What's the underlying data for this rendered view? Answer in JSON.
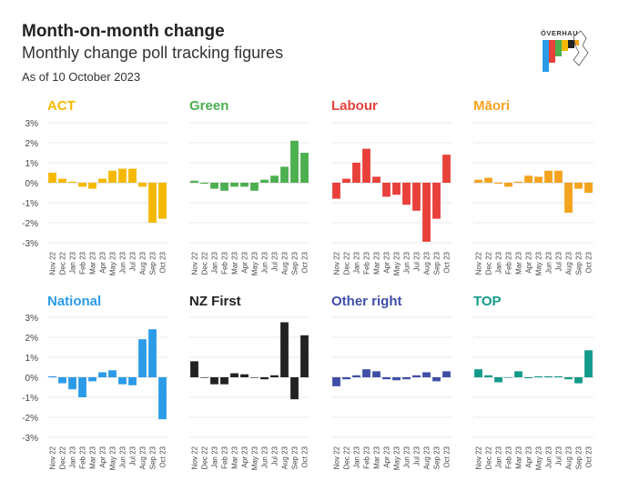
{
  "header": {
    "title": "Month-on-month change",
    "subtitle": "Monthly change poll tracking figures",
    "as_of": "As of 10 October 2023",
    "logo_text": "ÖVERHAU"
  },
  "chart_data": [
    {
      "type": "bar",
      "title": "ACT",
      "color": "#F5B800",
      "categories": [
        "Nov 22",
        "Dec 22",
        "Jan 23",
        "Feb 23",
        "Mar 23",
        "Apr 23",
        "May 23",
        "Jun 23",
        "Jul 23",
        "Aug 23",
        "Sep 23",
        "Oct 23"
      ],
      "values": [
        0.5,
        0.2,
        0.05,
        -0.2,
        -0.3,
        0.2,
        0.6,
        0.7,
        0.7,
        -0.2,
        -2.0,
        -1.8
      ],
      "yticks": [
        "3%",
        "2%",
        "1%",
        "0%",
        "-1%",
        "-2%",
        "-3%"
      ],
      "ylim": [
        -3,
        3
      ]
    },
    {
      "type": "bar",
      "title": "Green",
      "color": "#4CAF50",
      "categories": [
        "Nov 22",
        "Dec 22",
        "Jan 23",
        "Feb 23",
        "Mar 23",
        "Apr 23",
        "May 23",
        "Jun 23",
        "Jul 23",
        "Aug 23",
        "Sep 23",
        "Oct 23"
      ],
      "values": [
        0.1,
        -0.05,
        -0.3,
        -0.4,
        -0.2,
        -0.2,
        -0.4,
        0.15,
        0.35,
        0.8,
        2.1,
        1.5
      ],
      "yticks": [
        "3%",
        "2%",
        "1%",
        "0%",
        "-1%",
        "-2%",
        "-3%"
      ],
      "ylim": [
        -3,
        3
      ]
    },
    {
      "type": "bar",
      "title": "Labour",
      "color": "#E8403A",
      "categories": [
        "Nov 22",
        "Dec 22",
        "Jan 23",
        "Feb 23",
        "Mar 23",
        "Apr 23",
        "May 23",
        "Jun 23",
        "Jul 23",
        "Aug 23",
        "Sep 23",
        "Oct 23"
      ],
      "values": [
        -0.8,
        0.2,
        1.0,
        1.7,
        0.3,
        -0.7,
        -0.6,
        -1.1,
        -1.4,
        -2.95,
        -1.8,
        1.4
      ],
      "yticks": [
        "3%",
        "2%",
        "1%",
        "0%",
        "-1%",
        "-2%",
        "-3%"
      ],
      "ylim": [
        -3,
        3
      ]
    },
    {
      "type": "bar",
      "title": "Māori",
      "color": "#F5A21E",
      "categories": [
        "Nov 22",
        "Dec 22",
        "Jan 23",
        "Feb 23",
        "Mar 23",
        "Apr 23",
        "May 23",
        "Jun 23",
        "Jul 23",
        "Aug 23",
        "Sep 23",
        "Oct 23"
      ],
      "values": [
        0.15,
        0.25,
        -0.05,
        -0.2,
        0.05,
        0.35,
        0.3,
        0.6,
        0.6,
        -1.5,
        -0.3,
        -0.5
      ],
      "yticks": [
        "3%",
        "2%",
        "1%",
        "0%",
        "-1%",
        "-2%",
        "-3%"
      ],
      "ylim": [
        -3,
        3
      ]
    },
    {
      "type": "bar",
      "title": "National",
      "color": "#2B9BE8",
      "categories": [
        "Nov 22",
        "Dec 22",
        "Jan 23",
        "Feb 23",
        "Mar 23",
        "Apr 23",
        "May 23",
        "Jun 23",
        "Jul 23",
        "Aug 23",
        "Sep 23",
        "Oct 23"
      ],
      "values": [
        0.05,
        -0.3,
        -0.6,
        -1.0,
        -0.2,
        0.25,
        0.35,
        -0.35,
        -0.4,
        1.9,
        2.4,
        -2.1
      ],
      "yticks": [
        "3%",
        "2%",
        "1%",
        "0%",
        "-1%",
        "-2%",
        "-3%"
      ],
      "ylim": [
        -3,
        3
      ]
    },
    {
      "type": "bar",
      "title": "NZ First",
      "color": "#222222",
      "categories": [
        "Nov 22",
        "Dec 22",
        "Jan 23",
        "Feb 23",
        "Mar 23",
        "Apr 23",
        "May 23",
        "Jun 23",
        "Jul 23",
        "Aug 23",
        "Sep 23",
        "Oct 23"
      ],
      "values": [
        0.8,
        0.0,
        -0.35,
        -0.35,
        0.2,
        0.15,
        0.0,
        -0.1,
        0.1,
        2.75,
        -1.1,
        2.1
      ],
      "yticks": [
        "3%",
        "2%",
        "1%",
        "0%",
        "-1%",
        "-2%",
        "-3%"
      ],
      "ylim": [
        -3,
        3
      ]
    },
    {
      "type": "bar",
      "title": "Other right",
      "color": "#3F4EA8",
      "categories": [
        "Nov 22",
        "Dec 22",
        "Jan 23",
        "Feb 23",
        "Mar 23",
        "Apr 23",
        "May 23",
        "Jun 23",
        "Jul 23",
        "Aug 23",
        "Sep 23",
        "Oct 23"
      ],
      "values": [
        -0.45,
        -0.1,
        0.1,
        0.4,
        0.3,
        -0.1,
        -0.15,
        -0.1,
        0.1,
        0.25,
        -0.2,
        0.3
      ],
      "yticks": [
        "3%",
        "2%",
        "1%",
        "0%",
        "-1%",
        "-2%",
        "-3%"
      ],
      "ylim": [
        -3,
        3
      ]
    },
    {
      "type": "bar",
      "title": "TOP",
      "color": "#129A8A",
      "categories": [
        "Nov 22",
        "Dec 22",
        "Jan 23",
        "Feb 23",
        "Mar 23",
        "Apr 23",
        "May 23",
        "Jun 23",
        "Jul 23",
        "Aug 23",
        "Sep 23",
        "Oct 23"
      ],
      "values": [
        0.4,
        0.1,
        -0.25,
        0.0,
        0.3,
        -0.05,
        0.05,
        0.05,
        0.05,
        -0.1,
        -0.3,
        1.35
      ],
      "yticks": [
        "3%",
        "2%",
        "1%",
        "0%",
        "-1%",
        "-2%",
        "-3%"
      ],
      "ylim": [
        -3,
        3
      ]
    }
  ]
}
